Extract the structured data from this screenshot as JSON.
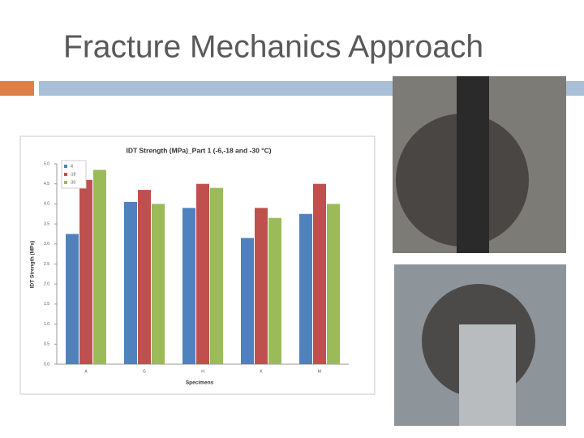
{
  "slide": {
    "title": "Fracture Mechanics Approach"
  },
  "chart_data": {
    "type": "bar",
    "title": "IDT Strength (MPa)_Part 1 (-6,-18 and -30 °C)",
    "x_label": "Specimens",
    "y_label": "IDT Strength (MPa)",
    "categories": [
      "A",
      "G",
      "H",
      "K",
      "M"
    ],
    "series": [
      {
        "name": "-6",
        "color": "#4f81bd",
        "values": [
          3.25,
          4.05,
          3.9,
          3.15,
          3.75
        ]
      },
      {
        "name": "-18",
        "color": "#c0504d",
        "values": [
          4.6,
          4.35,
          4.5,
          3.9,
          4.5
        ]
      },
      {
        "name": "-30",
        "color": "#9bbb59",
        "values": [
          4.85,
          4.0,
          4.4,
          3.65,
          4.0
        ]
      }
    ],
    "ylim": [
      0,
      5
    ],
    "yticks": [
      {
        "value": 0,
        "label": "0.0"
      },
      {
        "value": 0.5,
        "label": "0.5"
      },
      {
        "value": 1,
        "label": "1.0"
      },
      {
        "value": 1.5,
        "label": "1.5"
      },
      {
        "value": 2,
        "label": "2.0"
      },
      {
        "value": 2.5,
        "label": "2.5"
      },
      {
        "value": 3,
        "label": "3.0"
      },
      {
        "value": 3.5,
        "label": "3.5"
      },
      {
        "value": 4,
        "label": "4.0"
      },
      {
        "value": 4.5,
        "label": "4.5"
      },
      {
        "value": 5,
        "label": "5.0"
      }
    ],
    "grid": false,
    "legend": "top-left"
  }
}
